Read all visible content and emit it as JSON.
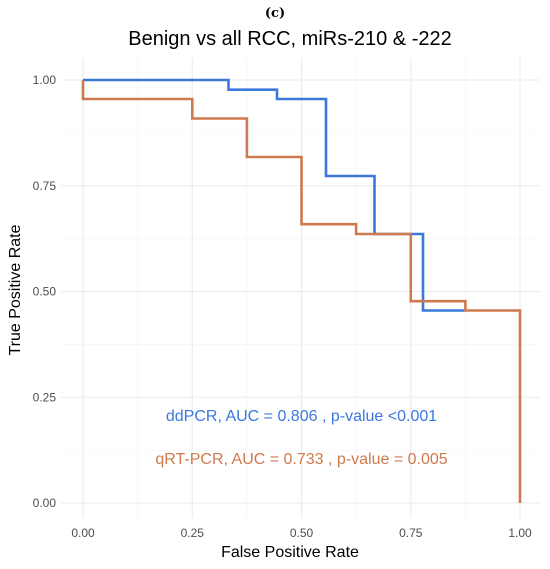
{
  "panel_label": "(c)",
  "chart_data": {
    "type": "line",
    "title": "Benign vs all RCC, miRs-210 & -222",
    "xlabel": "False Positive Rate",
    "ylabel": "True Positive Rate",
    "xlim": [
      0,
      1
    ],
    "ylim": [
      0,
      1
    ],
    "x_ticks": [
      "0.00",
      "0.25",
      "0.50",
      "0.75",
      "1.00"
    ],
    "y_ticks": [
      "0.00",
      "0.25",
      "0.50",
      "0.75",
      "1.00"
    ],
    "grid": true,
    "series": [
      {
        "name": "ddPCR",
        "color": "#3a78dc",
        "x": [
          0.0,
          0.333,
          0.333,
          0.444,
          0.444,
          0.556,
          0.556,
          0.667,
          0.667,
          0.778,
          0.778,
          0.875
        ],
        "y": [
          1.0,
          1.0,
          0.977,
          0.977,
          0.955,
          0.955,
          0.773,
          0.773,
          0.636,
          0.636,
          0.455,
          0.455
        ]
      },
      {
        "name": "qRT-PCR",
        "color": "#cf7a4e",
        "x": [
          0.0,
          0.0,
          0.25,
          0.25,
          0.375,
          0.375,
          0.5,
          0.5,
          0.625,
          0.625,
          0.75,
          0.75,
          0.875,
          0.875,
          1.0,
          1.0
        ],
        "y": [
          1.0,
          0.955,
          0.955,
          0.909,
          0.909,
          0.818,
          0.818,
          0.659,
          0.659,
          0.636,
          0.636,
          0.477,
          0.477,
          0.455,
          0.455,
          0.0
        ]
      }
    ],
    "annotations": [
      {
        "text": "ddPCR, AUC = 0.806 , p-value <0.001",
        "color": "#3a78dc"
      },
      {
        "text": "qRT-PCR, AUC = 0.733 , p-value = 0.005",
        "color": "#cf7a4e"
      }
    ]
  }
}
